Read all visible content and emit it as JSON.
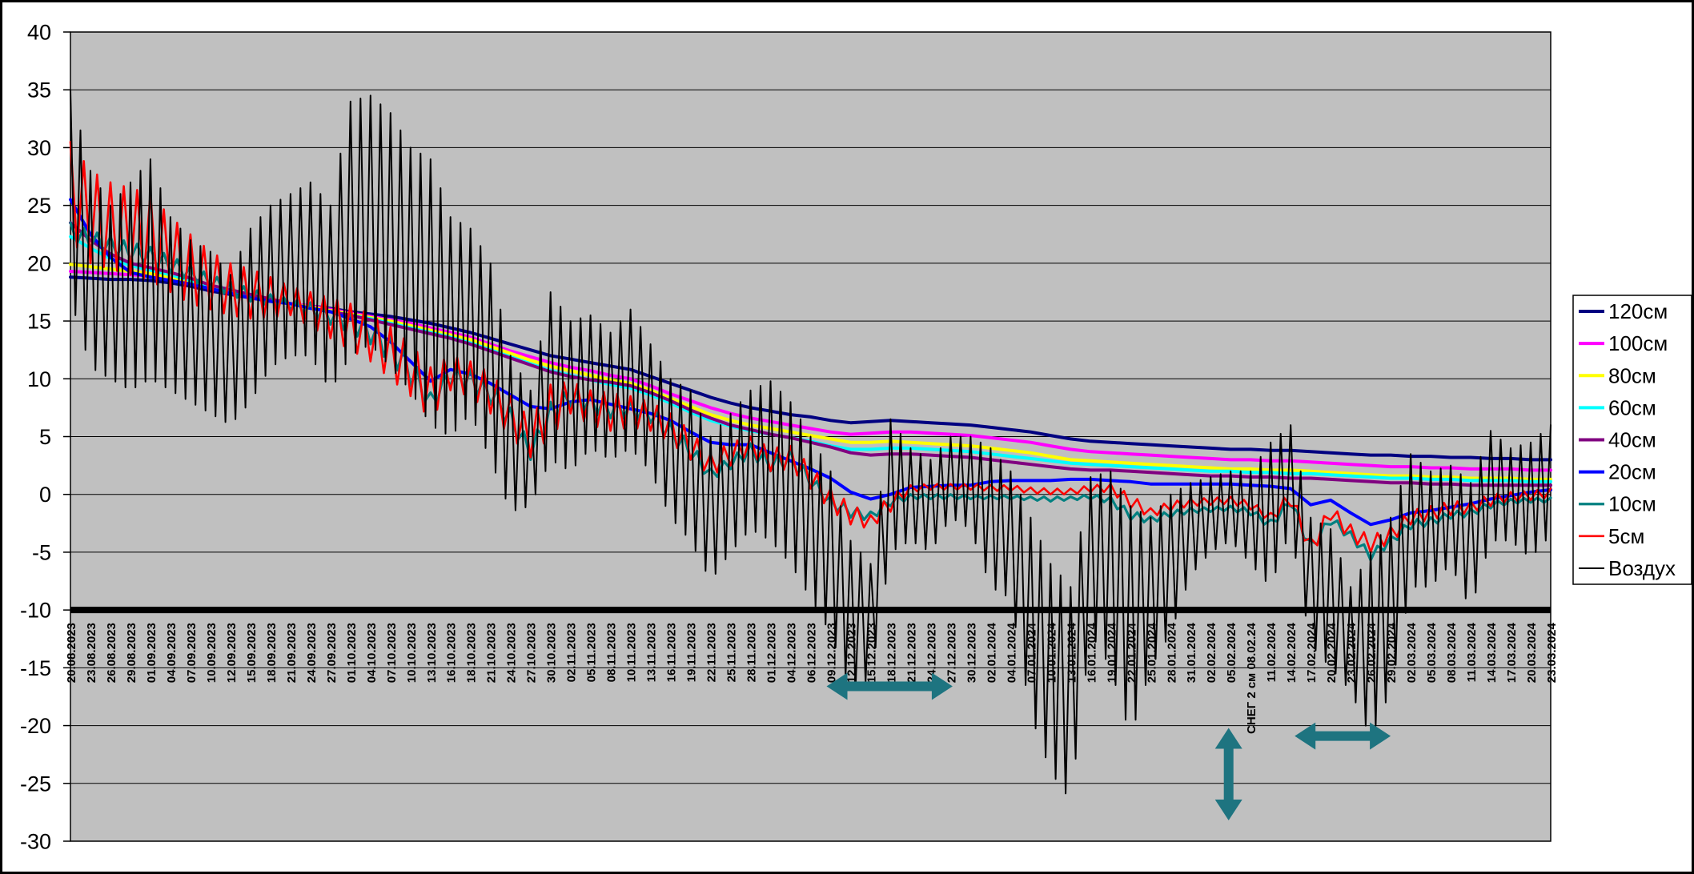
{
  "window": {
    "background": "#ffffff",
    "border_color": "#000000"
  },
  "chart_data": {
    "type": "line",
    "title": "",
    "xlabel": "",
    "ylabel": "",
    "ylim": [
      -30,
      40
    ],
    "ytick_step": 5,
    "x_axis_cross_value": -10,
    "plot_bg": "#c0c0c0",
    "grid": true,
    "legend_position": "right",
    "special_category_index": 59,
    "categories": [
      "20.08.2023",
      "23.08.2023",
      "26.08.2023",
      "29.08.2023",
      "01.09.2023",
      "04.09.2023",
      "07.09.2023",
      "10.09.2023",
      "12.09.2023",
      "15.09.2023",
      "18.09.2023",
      "21.09.2023",
      "24.09.2023",
      "27.09.2023",
      "01.10.2023",
      "04.10.2023",
      "07.10.2023",
      "10.10.2023",
      "13.10.2023",
      "16.10.2023",
      "18.10.2023",
      "21.10.2023",
      "24.10.2023",
      "27.10.2023",
      "30.10.2023",
      "02.11.2023",
      "05.11.2023",
      "08.11.2023",
      "10.11.2023",
      "13.11.2023",
      "16.11.2023",
      "19.11.2023",
      "22.11.2023",
      "25.11.2023",
      "28.11.2023",
      "01.12.2023",
      "04.12.2023",
      "06.12.2023",
      "09.12.2023",
      "12.12.2023",
      "15.12.2023",
      "18.12.2023",
      "21.12.2023",
      "24.12.2023",
      "27.12.2023",
      "30.12.2023",
      "02.01.2024",
      "04.01.2024",
      "07.01.2024",
      "10.01.2024",
      "13.01.2024",
      "16.01.2024",
      "19.01.2024",
      "22.01.2024",
      "25.01.2024",
      "28.01.2024",
      "31.01.2024",
      "02.02.2024",
      "05.02.2024",
      "СНЕГ 2 см 08.02.24",
      "11.02.2024",
      "14.02.2024",
      "17.02.2024",
      "20.02.2024",
      "23.02.2024",
      "26.02.2024",
      "29.02.2024",
      "02.03.2024",
      "05.03.2024",
      "08.03.2024",
      "11.03.2024",
      "14.03.2024",
      "17.03.2024",
      "20.03.2024",
      "23.03.2024"
    ],
    "series": [
      {
        "name": "120см",
        "color": "#000080",
        "width": 4,
        "values": [
          18.8,
          18.7,
          18.6,
          18.6,
          18.5,
          18.3,
          18.0,
          17.6,
          17.3,
          17.0,
          16.7,
          16.5,
          16.3,
          16.1,
          15.8,
          15.6,
          15.4,
          15.1,
          14.8,
          14.4,
          14.0,
          13.5,
          13.0,
          12.5,
          12.0,
          11.7,
          11.4,
          11.1,
          10.8,
          10.2,
          9.6,
          9.0,
          8.4,
          7.9,
          7.5,
          7.2,
          6.9,
          6.7,
          6.4,
          6.2,
          6.3,
          6.4,
          6.3,
          6.2,
          6.1,
          6.0,
          5.8,
          5.6,
          5.4,
          5.1,
          4.8,
          4.6,
          4.5,
          4.4,
          4.3,
          4.2,
          4.1,
          4.0,
          3.9,
          3.9,
          3.8,
          3.8,
          3.7,
          3.6,
          3.5,
          3.4,
          3.4,
          3.3,
          3.3,
          3.2,
          3.2,
          3.1,
          3.1,
          3.0,
          3.0
        ]
      },
      {
        "name": "100см",
        "color": "#ff00ff",
        "width": 4,
        "values": [
          19.3,
          19.2,
          19.1,
          19.0,
          18.9,
          18.7,
          18.3,
          17.9,
          17.5,
          17.1,
          16.8,
          16.5,
          16.3,
          16.0,
          15.7,
          15.4,
          15.1,
          14.8,
          14.4,
          14.0,
          13.6,
          13.0,
          12.4,
          11.9,
          11.4,
          11.0,
          10.7,
          10.3,
          10.0,
          9.4,
          8.7,
          8.1,
          7.5,
          7.0,
          6.6,
          6.3,
          6.0,
          5.7,
          5.4,
          5.2,
          5.3,
          5.4,
          5.4,
          5.3,
          5.2,
          5.1,
          4.9,
          4.7,
          4.5,
          4.2,
          3.9,
          3.7,
          3.6,
          3.5,
          3.4,
          3.3,
          3.2,
          3.1,
          3.0,
          3.0,
          2.9,
          2.9,
          2.8,
          2.7,
          2.6,
          2.5,
          2.4,
          2.4,
          2.3,
          2.3,
          2.2,
          2.2,
          2.2,
          2.1,
          2.1
        ]
      },
      {
        "name": "80см",
        "color": "#ffff00",
        "width": 4,
        "values": [
          19.9,
          19.7,
          19.5,
          19.3,
          19.1,
          18.8,
          18.4,
          17.9,
          17.5,
          17.1,
          16.8,
          16.5,
          16.2,
          15.9,
          15.6,
          15.3,
          15.0,
          14.6,
          14.2,
          13.8,
          13.4,
          12.8,
          12.2,
          11.6,
          11.1,
          10.7,
          10.3,
          9.9,
          9.6,
          9.0,
          8.3,
          7.6,
          6.9,
          6.4,
          6.0,
          5.7,
          5.4,
          5.1,
          4.8,
          4.5,
          4.5,
          4.6,
          4.5,
          4.4,
          4.3,
          4.2,
          4.0,
          3.8,
          3.6,
          3.3,
          3.0,
          2.9,
          2.8,
          2.7,
          2.6,
          2.5,
          2.4,
          2.3,
          2.2,
          2.2,
          2.1,
          2.1,
          2.0,
          1.9,
          1.8,
          1.7,
          1.6,
          1.6,
          1.5,
          1.5,
          1.4,
          1.4,
          1.4,
          1.3,
          1.3
        ]
      },
      {
        "name": "60см",
        "color": "#00ffff",
        "width": 4,
        "values": [
          22.3,
          21.3,
          20.4,
          19.8,
          19.4,
          19.0,
          18.5,
          18.0,
          17.6,
          17.2,
          16.8,
          16.5,
          16.1,
          15.8,
          15.5,
          15.2,
          14.8,
          14.4,
          14.0,
          13.6,
          13.1,
          12.5,
          11.9,
          11.3,
          10.7,
          10.3,
          9.9,
          9.5,
          9.2,
          8.6,
          7.9,
          7.1,
          6.4,
          5.9,
          5.5,
          5.2,
          4.9,
          4.6,
          4.2,
          3.9,
          3.9,
          4.0,
          4.0,
          3.9,
          3.8,
          3.7,
          3.5,
          3.3,
          3.1,
          2.9,
          2.7,
          2.6,
          2.5,
          2.4,
          2.3,
          2.2,
          2.1,
          2.0,
          2.0,
          1.9,
          1.9,
          1.8,
          1.8,
          1.7,
          1.6,
          1.5,
          1.4,
          1.4,
          1.3,
          1.3,
          1.2,
          1.2,
          1.2,
          1.1,
          1.1
        ]
      },
      {
        "name": "40см",
        "color": "#800080",
        "width": 4,
        "values": [
          23.5,
          22.0,
          20.8,
          20.0,
          19.6,
          19.2,
          18.7,
          18.1,
          17.7,
          17.3,
          16.9,
          16.5,
          16.1,
          15.8,
          15.5,
          15.1,
          14.7,
          14.3,
          13.9,
          13.5,
          13.0,
          12.4,
          11.8,
          11.2,
          10.6,
          10.2,
          9.9,
          9.7,
          9.4,
          8.8,
          8.1,
          7.3,
          6.6,
          6.0,
          5.6,
          5.2,
          4.9,
          4.5,
          4.1,
          3.6,
          3.4,
          3.5,
          3.5,
          3.4,
          3.3,
          3.2,
          3.0,
          2.8,
          2.6,
          2.4,
          2.2,
          2.1,
          2.1,
          2.0,
          1.9,
          1.8,
          1.7,
          1.6,
          1.6,
          1.5,
          1.5,
          1.4,
          1.4,
          1.3,
          1.2,
          1.1,
          1.0,
          1.0,
          0.9,
          0.9,
          0.8,
          0.8,
          0.8,
          0.8,
          0.8
        ]
      },
      {
        "name": "20см",
        "color": "#0000ff",
        "width": 4,
        "values": [
          25.5,
          22.5,
          20.5,
          19.2,
          18.8,
          18.5,
          18.2,
          17.8,
          17.4,
          17.0,
          16.7,
          16.5,
          16.1,
          15.8,
          15.2,
          14.5,
          13.2,
          11.5,
          9.8,
          10.8,
          10.4,
          9.6,
          8.6,
          7.6,
          7.4,
          8.0,
          8.2,
          7.8,
          7.4,
          7.0,
          6.4,
          5.4,
          4.5,
          4.3,
          4.3,
          3.6,
          2.9,
          2.2,
          1.4,
          0.2,
          -0.4,
          0.0,
          0.6,
          0.7,
          0.8,
          0.8,
          1.1,
          1.2,
          1.2,
          1.2,
          1.3,
          1.3,
          1.2,
          1.1,
          0.9,
          0.9,
          0.9,
          0.9,
          0.9,
          0.8,
          0.7,
          0.5,
          -0.9,
          -0.5,
          -1.6,
          -2.6,
          -2.2,
          -1.6,
          -1.4,
          -1.1,
          -0.8,
          -0.4,
          -0.1,
          0.2,
          0.4
        ]
      },
      {
        "name": "10см",
        "color": "#008080",
        "width": 3.2,
        "zigzag": 3,
        "envelope": {
          "max": [
            23.5,
            22.8,
            22.3,
            21.8,
            21.4,
            20.6,
            19.8,
            19.0,
            18.4,
            17.8,
            17.3,
            16.9,
            16.6,
            16.2,
            15.8,
            15.0,
            13.8,
            12.0,
            8.8,
            11.2,
            10.8,
            9.8,
            7.5,
            4.4,
            8.0,
            9.2,
            8.6,
            8.2,
            8.0,
            7.6,
            6.2,
            4.5,
            2.2,
            3.2,
            4.4,
            3.2,
            3.8,
            1.8,
            -0.2,
            -1.0,
            -1.5,
            -0.2,
            0.0,
            0.0,
            0.0,
            -0.1,
            -0.1,
            -0.1,
            -0.2,
            -0.2,
            -0.2,
            0.0,
            -0.2,
            -1.4,
            -1.9,
            -1.4,
            -1.2,
            -1.1,
            -1.0,
            -1.2,
            -2.2,
            -0.2,
            -4.0,
            -1.8,
            -3.2,
            -4.9,
            -3.6,
            -2.2,
            -2.0,
            -1.5,
            -1.3,
            -0.6,
            -0.4,
            -0.3,
            -0.3
          ],
          "min": [
            22.0,
            21.3,
            20.8,
            20.3,
            19.9,
            19.2,
            18.5,
            17.8,
            17.2,
            16.7,
            16.3,
            16.0,
            15.4,
            14.7,
            14.0,
            13.0,
            11.4,
            9.4,
            7.2,
            9.4,
            9.0,
            7.8,
            5.5,
            3.0,
            6.0,
            7.6,
            7.0,
            6.6,
            6.6,
            6.2,
            4.6,
            3.0,
            1.2,
            2.2,
            3.2,
            2.0,
            2.4,
            0.6,
            -1.2,
            -2.0,
            -2.3,
            -1.0,
            -0.4,
            -0.4,
            -0.4,
            -0.4,
            -0.4,
            -0.4,
            -0.5,
            -0.6,
            -0.5,
            -0.4,
            -0.8,
            -2.2,
            -2.5,
            -2.0,
            -1.6,
            -1.5,
            -1.4,
            -1.8,
            -3.0,
            -1.0,
            -5.2,
            -2.6,
            -4.0,
            -5.7,
            -4.4,
            -3.0,
            -2.7,
            -2.1,
            -1.9,
            -1.2,
            -0.8,
            -0.7,
            -0.7
          ]
        }
      },
      {
        "name": "5см",
        "color": "#ff0000",
        "width": 2.6,
        "zigzag": 3,
        "envelope": {
          "max": [
            30.5,
            28.0,
            27.0,
            26.5,
            26.0,
            24.0,
            22.5,
            21.0,
            20.0,
            19.5,
            18.8,
            18.0,
            17.5,
            17.0,
            16.5,
            15.5,
            14.5,
            13.0,
            11.0,
            12.0,
            11.5,
            10.5,
            8.5,
            6.5,
            9.5,
            9.8,
            9.0,
            8.8,
            8.5,
            8.0,
            7.0,
            5.5,
            3.5,
            4.5,
            5.0,
            4.0,
            4.2,
            2.5,
            0.5,
            -0.8,
            -1.8,
            0.0,
            0.8,
            0.9,
            0.9,
            0.9,
            0.8,
            0.8,
            0.6,
            0.5,
            0.5,
            0.8,
            0.9,
            0.0,
            -1.2,
            -0.6,
            -0.4,
            -0.3,
            -0.2,
            -0.6,
            -1.6,
            0.4,
            -3.8,
            -0.9,
            -2.6,
            -3.6,
            -2.8,
            -1.4,
            -1.0,
            -0.6,
            -0.6,
            0.0,
            0.2,
            0.3,
            0.5
          ],
          "min": [
            22.0,
            20.0,
            19.5,
            19.0,
            18.5,
            17.5,
            16.5,
            16.0,
            15.5,
            15.2,
            15.3,
            15.5,
            14.5,
            13.5,
            12.5,
            11.5,
            10.0,
            8.5,
            6.5,
            9.0,
            8.5,
            7.0,
            5.0,
            3.2,
            5.0,
            7.0,
            6.0,
            5.5,
            5.8,
            5.5,
            4.5,
            3.0,
            1.6,
            2.5,
            3.5,
            2.0,
            2.2,
            0.5,
            -1.4,
            -2.6,
            -3.0,
            -1.5,
            0.2,
            0.4,
            0.4,
            0.4,
            0.3,
            0.3,
            0.1,
            0.0,
            0.0,
            0.2,
            0.2,
            -1.2,
            -2.0,
            -1.4,
            -1.0,
            -0.9,
            -0.8,
            -1.3,
            -2.4,
            -1.0,
            -5.5,
            -2.2,
            -4.0,
            -5.0,
            -4.2,
            -2.6,
            -2.2,
            -1.8,
            -1.6,
            -1.0,
            -0.6,
            -0.5,
            -0.3
          ]
        }
      },
      {
        "name": "Воздух",
        "color": "#000000",
        "width": 2,
        "zigzag": 4,
        "envelope": {
          "max": [
            35,
            28,
            25,
            27,
            29,
            24,
            22,
            21,
            19,
            23,
            25,
            26,
            27,
            25,
            34,
            34.5,
            33,
            30,
            29,
            24,
            23,
            20,
            12,
            9,
            17.5,
            15,
            15.5,
            14,
            16,
            13,
            10,
            9,
            5,
            7,
            9,
            9.8,
            8,
            5,
            2,
            -4,
            -6,
            6.5,
            4,
            3,
            5,
            5,
            4,
            2,
            -2,
            -6,
            -8,
            1.5,
            2,
            -1,
            -2,
            0,
            1,
            1.5,
            2,
            2,
            4.5,
            6,
            -2,
            -3,
            -8,
            -5,
            -2,
            3.5,
            2,
            2.5,
            1,
            5.5,
            4,
            4.5,
            6
          ],
          "min": [
            17,
            11,
            10,
            9,
            10,
            9,
            8,
            7,
            6,
            8,
            11,
            12,
            12,
            9,
            12,
            13,
            11,
            9,
            6,
            5,
            7,
            3,
            -1.5,
            -1,
            3,
            2,
            4,
            3,
            4,
            2,
            -2,
            -4,
            -7.5,
            -5,
            -3,
            -4,
            -6,
            -9,
            -12,
            -17,
            -16,
            -5,
            -4,
            -5,
            -2,
            -3,
            -8,
            -9,
            -19,
            -24,
            -26.5,
            -12,
            -15,
            -21,
            -15,
            -12,
            -7,
            -5,
            -4,
            -6,
            -8,
            -3,
            -13,
            -15,
            -17,
            -21,
            -17,
            -8,
            -8,
            -6,
            -10,
            -4,
            -4,
            -5.5,
            -3.5
          ]
        }
      }
    ],
    "annotations": {
      "snow_note": "СНЕГ 2 см 08.02.24",
      "arrow_color": "#1e7480",
      "arrows": [
        {
          "type": "horizontal",
          "from_index": 37.8,
          "to_index": 44.1,
          "value": -16.6
        },
        {
          "type": "horizontal",
          "from_index": 61.2,
          "to_index": 66.0,
          "value": -20.9
        },
        {
          "type": "vertical",
          "index": 57.9,
          "from_value": -20.2,
          "to_value": -28.2
        }
      ]
    }
  }
}
